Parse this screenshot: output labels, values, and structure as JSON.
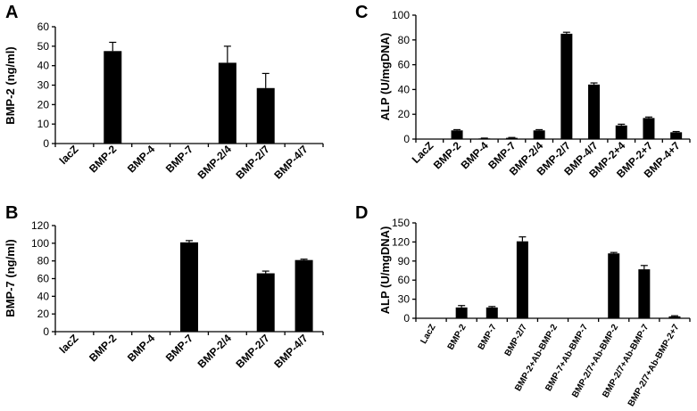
{
  "chart_data": [
    {
      "panel": "A",
      "type": "bar",
      "ylabel": "BMP-2 (ng/ml)",
      "xlabel": "",
      "title": "",
      "ylim": [
        0,
        60
      ],
      "yticks": [
        0,
        10,
        20,
        30,
        40,
        50,
        60
      ],
      "categories": [
        "lacZ",
        "BMP-2",
        "BMP-4",
        "BMP-7",
        "BMP-2/4",
        "BMP-2/7",
        "BMP-4/7"
      ],
      "values": [
        0,
        47.5,
        0,
        0,
        41.5,
        28.5,
        0
      ],
      "errors": [
        0,
        4.5,
        0,
        0,
        8.5,
        7.5,
        0
      ],
      "grid": false
    },
    {
      "panel": "B",
      "type": "bar",
      "ylabel": "BMP-7 (ng/ml)",
      "xlabel": "",
      "title": "",
      "ylim": [
        0,
        120
      ],
      "yticks": [
        0,
        20,
        40,
        60,
        80,
        100,
        120
      ],
      "categories": [
        "lacZ",
        "BMP-2",
        "BMP-4",
        "BMP-7",
        "BMP-2/4",
        "BMP-2/7",
        "BMP-4/7"
      ],
      "values": [
        0,
        0,
        0,
        101,
        0,
        66,
        81
      ],
      "errors": [
        0,
        0,
        0,
        2,
        0,
        2.5,
        1
      ],
      "grid": false
    },
    {
      "panel": "C",
      "type": "bar",
      "ylabel": "ALP (U/mgDNA)",
      "xlabel": "",
      "title": "",
      "ylim": [
        0,
        100
      ],
      "yticks": [
        0,
        20,
        40,
        60,
        80,
        100
      ],
      "categories": [
        "LacZ",
        "BMP-2",
        "BMP-4",
        "BMP-7",
        "BMP-2/4",
        "BMP-2/7",
        "BMP-4/7",
        "BMP-2+4",
        "BMP-2+7",
        "BMP-4+7"
      ],
      "values": [
        0,
        7,
        0.5,
        1,
        7,
        85,
        44,
        11,
        17,
        5.5
      ],
      "errors": [
        0,
        0.6,
        0.3,
        0.3,
        0.6,
        1.2,
        1.3,
        1,
        0.8,
        0.6
      ],
      "grid": false
    },
    {
      "panel": "D",
      "type": "bar",
      "ylabel": "ALP (U/mgDNA)",
      "xlabel": "",
      "title": "",
      "ylim": [
        0,
        150
      ],
      "yticks": [
        0,
        30,
        60,
        90,
        120,
        150
      ],
      "categories": [
        "LacZ",
        "BMP-2",
        "BMP-7",
        "BMP-2/7",
        "BMP-2+Ab-BMP-2",
        "BMP-7+Ab-BMP-7",
        "BMP-2/7+Ab-BMP-2",
        "BMP-2/7+Ab-BMP-7",
        "BMP-2/7+Ab-BMP-2+7"
      ],
      "values": [
        0,
        17,
        17,
        121,
        0,
        0,
        102,
        77,
        3
      ],
      "errors": [
        0,
        3,
        1.5,
        7,
        0,
        0,
        1.5,
        6,
        1
      ],
      "grid": false
    }
  ]
}
